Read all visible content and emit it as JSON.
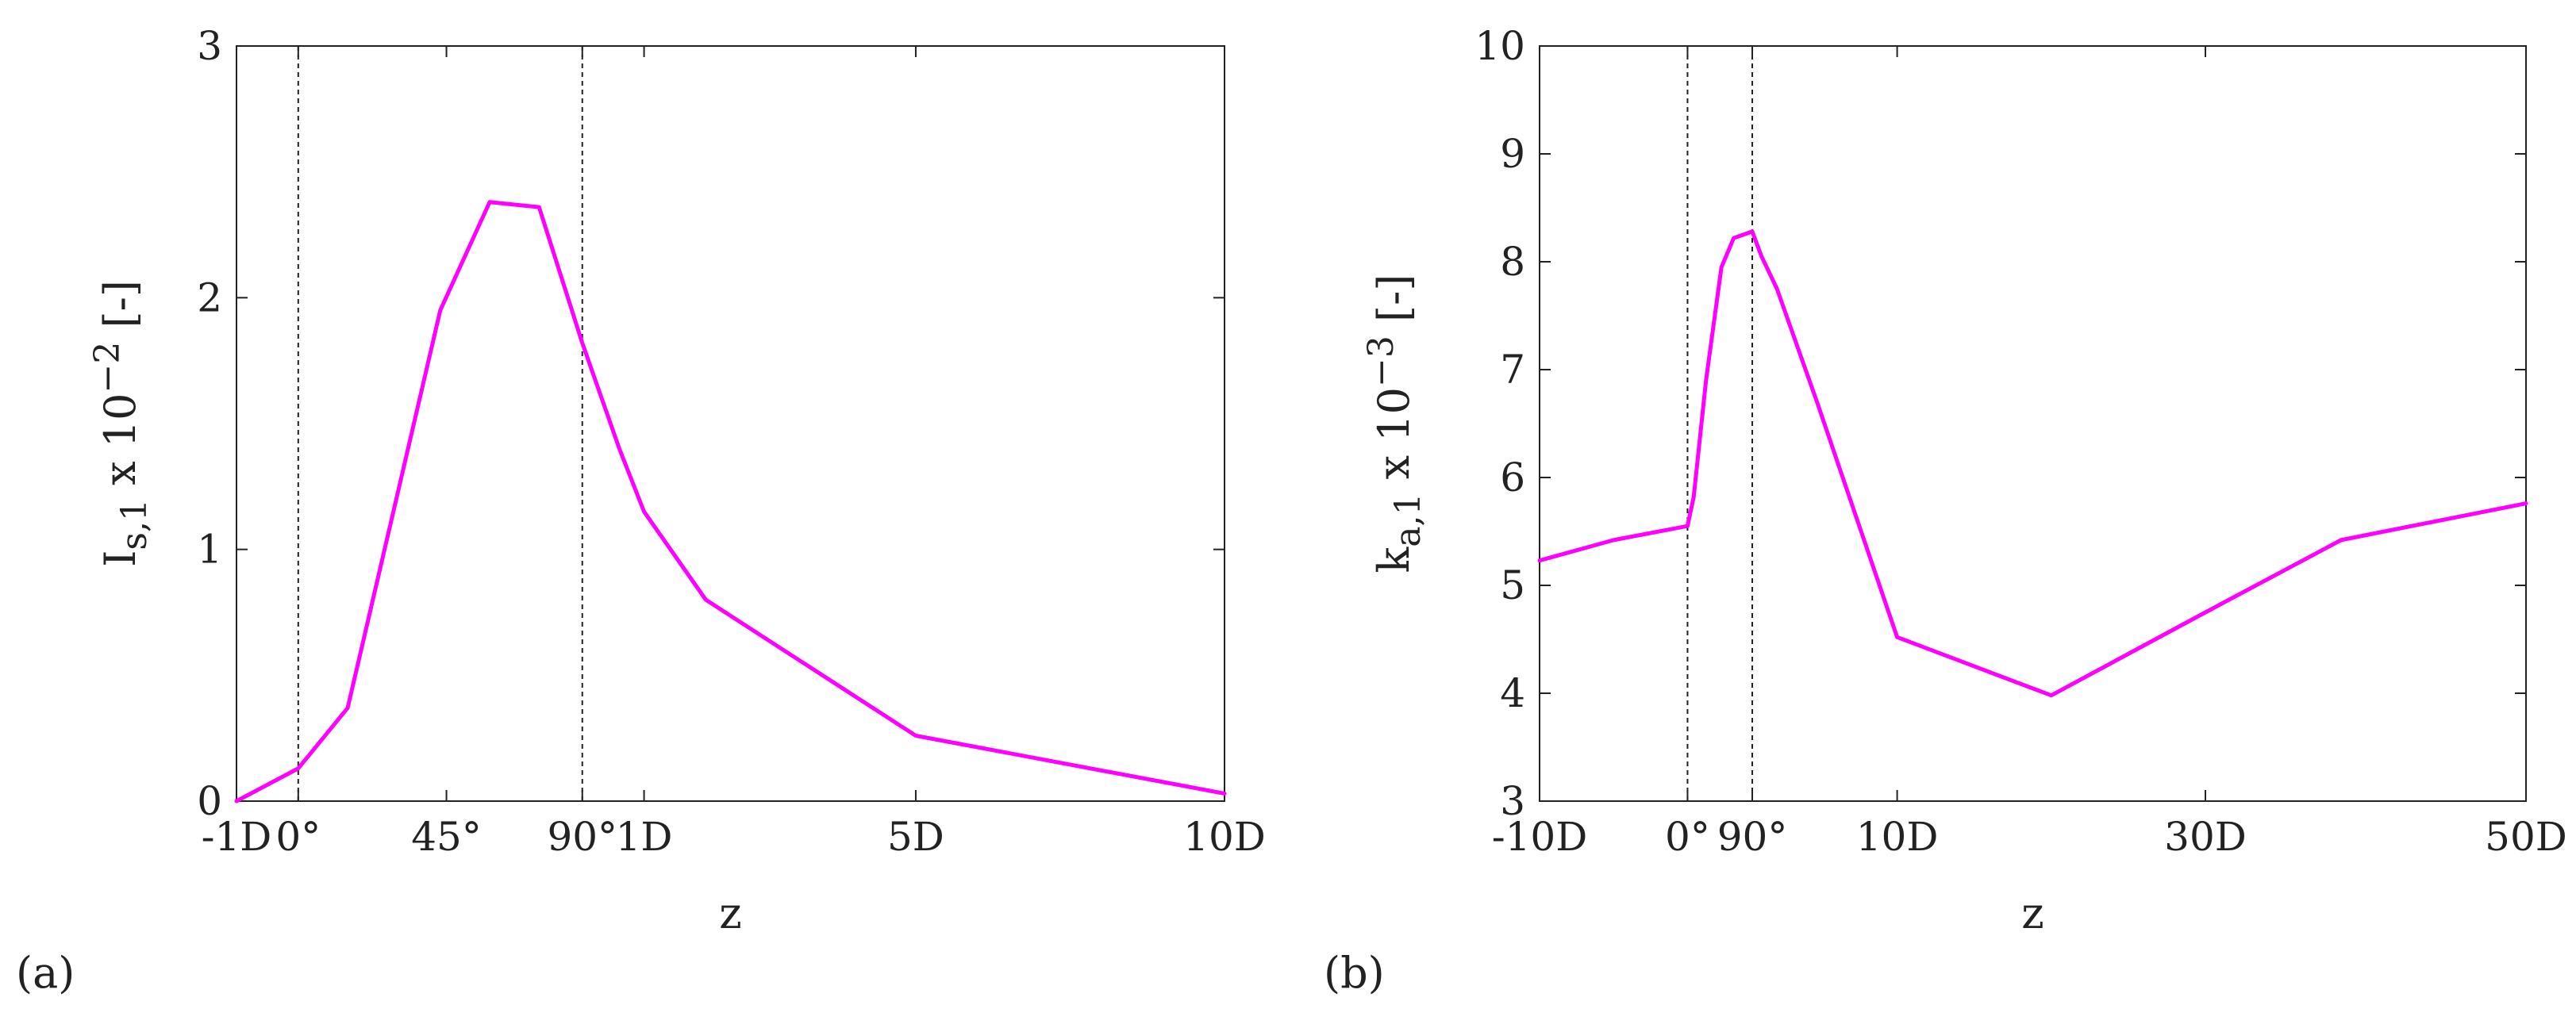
{
  "chart_data": [
    {
      "panel_label": "(a)",
      "type": "line",
      "xlabel": "z",
      "ylabel": {
        "base": "I",
        "sub": "s,1",
        "mid": " x 10",
        "sup": "−2",
        "tail": " [-]"
      },
      "ylim": [
        0,
        3
      ],
      "yticks": [
        0,
        1,
        2,
        3
      ],
      "ytick_labels": [
        "0",
        "1",
        "2",
        "3"
      ],
      "xlim": [
        0,
        16
      ],
      "xticks": [
        0,
        1,
        3.4,
        5.6,
        6.6,
        11,
        16
      ],
      "xtick_labels": [
        "-1D",
        "0°",
        "45°",
        "90°",
        "1D",
        "5D",
        "10D"
      ],
      "vlines": [
        1,
        5.6
      ],
      "series_color": "#ff00ff",
      "series": [
        {
          "x": [
            0,
            1,
            1.8,
            3.3,
            4.1,
            4.9,
            5.6,
            6.2,
            6.6,
            7.6,
            11,
            16
          ],
          "y": [
            0,
            0.13,
            0.37,
            1.95,
            2.38,
            2.36,
            1.82,
            1.4,
            1.15,
            0.8,
            0.26,
            0.03
          ]
        }
      ]
    },
    {
      "panel_label": "(b)",
      "type": "line",
      "xlabel": "z",
      "ylabel": {
        "base": "k",
        "sub": "a,1",
        "mid": " x 10",
        "sup": "−3",
        "tail": " [-]"
      },
      "ylim": [
        3,
        10
      ],
      "yticks": [
        3,
        4,
        5,
        6,
        7,
        8,
        9,
        10
      ],
      "ytick_labels": [
        "3",
        "4",
        "5",
        "6",
        "7",
        "8",
        "9",
        "10"
      ],
      "xlim": [
        0,
        16
      ],
      "xticks": [
        0,
        2.4,
        3.45,
        5.8,
        10.8,
        16
      ],
      "xtick_labels": [
        "-10D",
        "0°",
        "90°",
        "10D",
        "30D",
        "50D"
      ],
      "vlines": [
        2.4,
        3.45
      ],
      "series_color": "#ff00ff",
      "series": [
        {
          "x": [
            0,
            1.2,
            2.4,
            2.5,
            2.7,
            2.95,
            3.15,
            3.3,
            3.45,
            3.6,
            3.85,
            4.5,
            5.8,
            8.3,
            10.8,
            13,
            16
          ],
          "y": [
            5.23,
            5.42,
            5.55,
            5.82,
            6.9,
            7.95,
            8.22,
            8.25,
            8.28,
            8.05,
            7.75,
            6.7,
            4.52,
            3.98,
            4.75,
            5.42,
            5.76
          ]
        }
      ]
    }
  ]
}
